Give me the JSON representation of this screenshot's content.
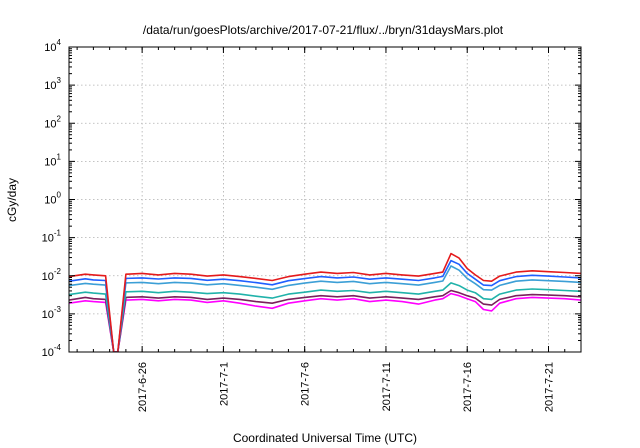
{
  "chart_data": {
    "type": "line",
    "title": "/data/run/goesPlots/archive/2017-07-21/flux/../bryn/31daysMars.plot",
    "xlabel": "Coordinated Universal Time (UTC)",
    "ylabel": "cGy/day",
    "yscale": "log",
    "ylim": [
      0.0001,
      10000
    ],
    "xlim": [
      "2017-06-21T12:00",
      "2017-07-23T00:00"
    ],
    "grid": true,
    "x_ticks": [
      {
        "label": "2017-6-26",
        "x": "2017-06-26"
      },
      {
        "label": "2017-7-1",
        "x": "2017-07-01"
      },
      {
        "label": "2017-7-6",
        "x": "2017-07-06"
      },
      {
        "label": "2017-7-11",
        "x": "2017-07-11"
      },
      {
        "label": "2017-7-16",
        "x": "2017-07-16"
      },
      {
        "label": "2017-7-21",
        "x": "2017-07-21"
      }
    ],
    "y_ticks": [
      {
        "base": "10",
        "exp": "-4",
        "value": 0.0001
      },
      {
        "base": "10",
        "exp": "-3",
        "value": 0.001
      },
      {
        "base": "10",
        "exp": "-2",
        "value": 0.01
      },
      {
        "base": "10",
        "exp": "-1",
        "value": 0.1
      },
      {
        "base": "10",
        "exp": "0",
        "value": 1
      },
      {
        "base": "10",
        "exp": "1",
        "value": 10
      },
      {
        "base": "10",
        "exp": "2",
        "value": 100
      },
      {
        "base": "10",
        "exp": "3",
        "value": 1000
      },
      {
        "base": "10",
        "exp": "4",
        "value": 10000
      }
    ],
    "x": [
      "2017-06-21T12:00",
      "2017-06-22T12:00",
      "2017-06-23T00:00",
      "2017-06-23T18:00",
      "2017-06-24T06:00",
      "2017-06-24T12:00",
      "2017-06-25T00:00",
      "2017-06-26T00:00",
      "2017-06-27T00:00",
      "2017-06-28T00:00",
      "2017-06-29T00:00",
      "2017-06-30T00:00",
      "2017-07-01T00:00",
      "2017-07-02T00:00",
      "2017-07-03T00:00",
      "2017-07-04T00:00",
      "2017-07-05T00:00",
      "2017-07-06T00:00",
      "2017-07-07T00:00",
      "2017-07-08T00:00",
      "2017-07-09T00:00",
      "2017-07-10T00:00",
      "2017-07-11T00:00",
      "2017-07-12T00:00",
      "2017-07-13T00:00",
      "2017-07-14T00:00",
      "2017-07-14T12:00",
      "2017-07-15T00:00",
      "2017-07-15T12:00",
      "2017-07-16T00:00",
      "2017-07-16T12:00",
      "2017-07-17T00:00",
      "2017-07-17T12:00",
      "2017-07-18T00:00",
      "2017-07-19T00:00",
      "2017-07-20T00:00",
      "2017-07-21T00:00",
      "2017-07-22T00:00",
      "2017-07-23T00:00"
    ],
    "series": [
      {
        "color": "#e41a1c",
        "values": [
          0.0095,
          0.011,
          0.0105,
          0.01,
          0.0001,
          0.0001,
          0.011,
          0.0115,
          0.0105,
          0.0115,
          0.011,
          0.0098,
          0.0105,
          0.0095,
          0.0085,
          0.0075,
          0.0095,
          0.011,
          0.0125,
          0.0115,
          0.0122,
          0.0105,
          0.0115,
          0.0105,
          0.0098,
          0.0115,
          0.0125,
          0.038,
          0.029,
          0.0155,
          0.0105,
          0.0075,
          0.0072,
          0.0098,
          0.0125,
          0.0135,
          0.0128,
          0.0122,
          0.0115
        ]
      },
      {
        "color": "#1f5fff",
        "values": [
          0.0072,
          0.0083,
          0.0078,
          0.0075,
          0.0001,
          0.0001,
          0.0085,
          0.0088,
          0.0082,
          0.0088,
          0.0085,
          0.0076,
          0.0081,
          0.0074,
          0.0066,
          0.0058,
          0.0074,
          0.0084,
          0.0095,
          0.0088,
          0.0093,
          0.0081,
          0.0088,
          0.0081,
          0.0075,
          0.0088,
          0.0096,
          0.025,
          0.02,
          0.0115,
          0.0081,
          0.0057,
          0.0055,
          0.0074,
          0.0095,
          0.0103,
          0.0098,
          0.0093,
          0.0088
        ]
      },
      {
        "color": "#3c9fd6",
        "values": [
          0.0055,
          0.0063,
          0.006,
          0.0057,
          0.0001,
          0.0001,
          0.0065,
          0.0067,
          0.0062,
          0.0067,
          0.0064,
          0.0058,
          0.0062,
          0.0056,
          0.005,
          0.0044,
          0.0056,
          0.0064,
          0.0072,
          0.0067,
          0.0071,
          0.0062,
          0.0067,
          0.0062,
          0.0057,
          0.0067,
          0.0073,
          0.018,
          0.014,
          0.0085,
          0.0062,
          0.0043,
          0.0042,
          0.0056,
          0.0072,
          0.0078,
          0.0074,
          0.0071,
          0.0067
        ]
      },
      {
        "color": "#20b2aa",
        "values": [
          0.0032,
          0.0037,
          0.0035,
          0.0033,
          0.0001,
          0.0001,
          0.0038,
          0.0039,
          0.0036,
          0.0039,
          0.0037,
          0.0034,
          0.0036,
          0.0033,
          0.0029,
          0.0026,
          0.0033,
          0.0037,
          0.0042,
          0.0039,
          0.0041,
          0.0036,
          0.0039,
          0.0036,
          0.0033,
          0.0039,
          0.0042,
          0.0065,
          0.0055,
          0.0042,
          0.0036,
          0.0025,
          0.0024,
          0.0033,
          0.0042,
          0.0045,
          0.0043,
          0.0041,
          0.0039
        ]
      },
      {
        "color": "#7a1f5c",
        "values": [
          0.0023,
          0.0027,
          0.0025,
          0.0024,
          0.0001,
          0.0001,
          0.0027,
          0.0028,
          0.0026,
          0.0028,
          0.0027,
          0.0024,
          0.0026,
          0.0024,
          0.0021,
          0.0019,
          0.0024,
          0.0027,
          0.003,
          0.0028,
          0.003,
          0.0026,
          0.0028,
          0.0026,
          0.0024,
          0.0028,
          0.003,
          0.0041,
          0.0036,
          0.003,
          0.0026,
          0.0018,
          0.0017,
          0.0024,
          0.003,
          0.0032,
          0.0031,
          0.003,
          0.0028
        ]
      },
      {
        "color": "#ff00ff",
        "values": [
          0.0019,
          0.0022,
          0.0021,
          0.002,
          0.0001,
          0.0001,
          0.0023,
          0.0024,
          0.0022,
          0.0024,
          0.0023,
          0.002,
          0.0022,
          0.0019,
          0.0016,
          0.0014,
          0.0019,
          0.0022,
          0.0025,
          0.0023,
          0.0025,
          0.0021,
          0.0023,
          0.0021,
          0.0018,
          0.0023,
          0.0025,
          0.0034,
          0.003,
          0.0025,
          0.0021,
          0.0013,
          0.0012,
          0.0019,
          0.0025,
          0.0027,
          0.0026,
          0.0025,
          0.0023
        ]
      }
    ]
  }
}
